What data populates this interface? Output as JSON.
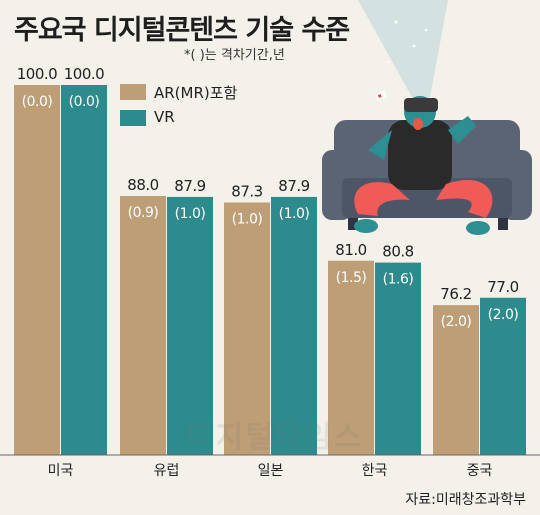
{
  "colors": {
    "ar": "#bd9e76",
    "vr": "#2d8b8d",
    "background": "#f4f1ea",
    "axis": "#666666"
  },
  "note": "*( )는 격차기간,년",
  "source": "자료:미래창조과학부",
  "watermark": "디지털타임스",
  "chart_data": {
    "type": "bar",
    "title": "주요국 디지털콘텐츠 기술 수준",
    "categories": [
      "미국",
      "유럽",
      "일본",
      "한국",
      "중국"
    ],
    "series": [
      {
        "name": "AR(MR)포함",
        "values": [
          100.0,
          88.0,
          87.3,
          81.0,
          76.2
        ],
        "labels": [
          "100.0",
          "88.0",
          "87.3",
          "81.0",
          "76.2"
        ],
        "gap_labels": [
          "(0.0)",
          "(0.9)",
          "(1.0)",
          "(1.5)",
          "(2.0)"
        ]
      },
      {
        "name": "VR",
        "values": [
          100.0,
          87.9,
          87.9,
          80.8,
          77.0
        ],
        "labels": [
          "100.0",
          "87.9",
          "87.9",
          "80.8",
          "77.0"
        ],
        "gap_labels": [
          "(0.0)",
          "(1.0)",
          "(1.0)",
          "(1.6)",
          "(2.0)"
        ]
      }
    ],
    "ylim": [
      60,
      100
    ],
    "grid": false,
    "legend": "top-left"
  }
}
